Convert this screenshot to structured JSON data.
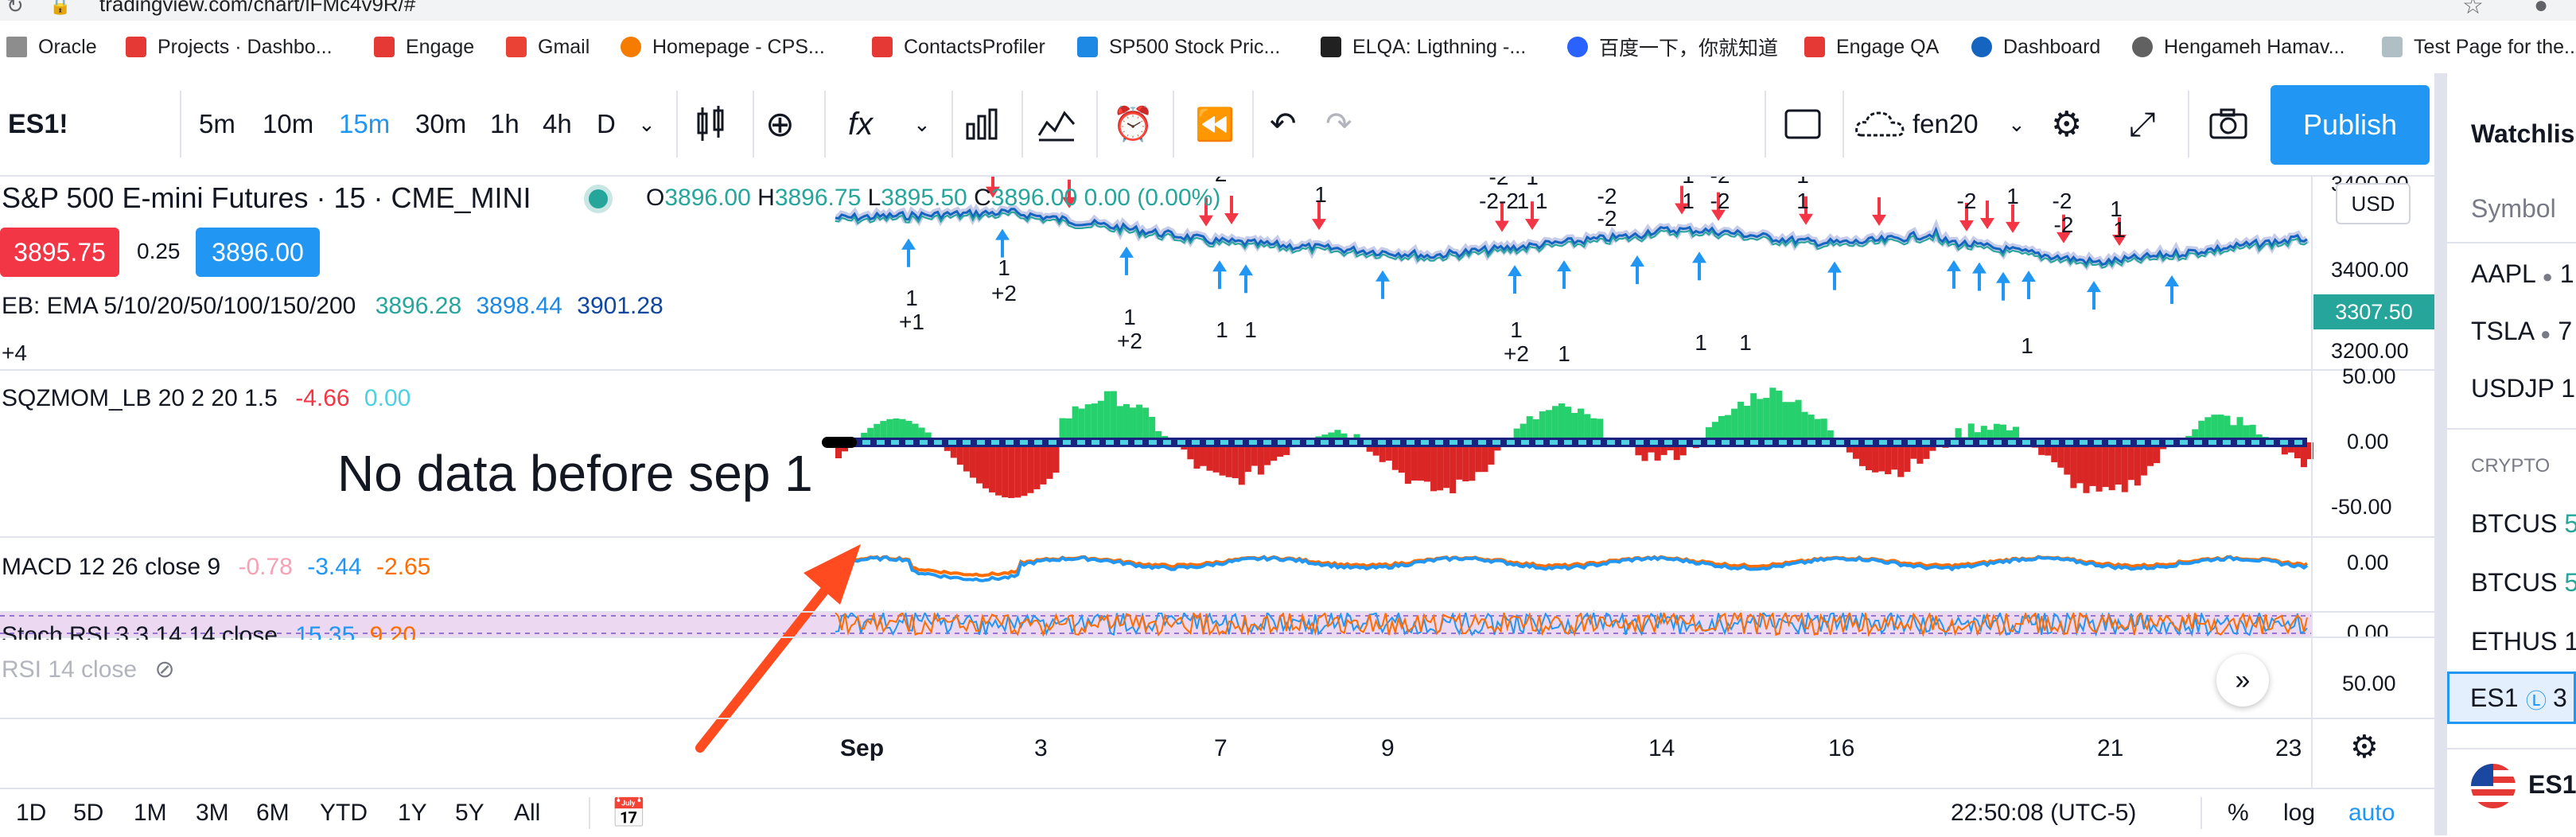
{
  "browser": {
    "url": "tradingview.com/chart/lFMc4v9R/#",
    "bookmarks": [
      "Oracle",
      "Projects · Dashbo...",
      "Engage",
      "Gmail",
      "Homepage - CPS...",
      "ContactsProfiler",
      "SP500 Stock Pric...",
      "ELQA: Ligthning -...",
      "百度一下，你就知道",
      "Engage QA",
      "Dashboard",
      "Hengameh Hamav...",
      "Test Page for the..."
    ]
  },
  "toolbar": {
    "symbol": "ES1!",
    "intervals": [
      "5m",
      "10m",
      "15m",
      "30m",
      "1h",
      "4h",
      "D"
    ],
    "active_interval": "15m",
    "layout_name": "fen20",
    "publish_label": "Publish",
    "accent": "#2196f3"
  },
  "legend": {
    "title": "S&P 500 E-mini Futures · 15 · CME_MINI",
    "ohlc": {
      "o_label": "O",
      "o": "3896.00",
      "h_label": "H",
      "h": "3896.75",
      "l_label": "L",
      "l": "3895.50",
      "c_label": "C",
      "c": "3896.00",
      "chg": "0.00 (0.00%)"
    },
    "bid": "3895.75",
    "spread": "0.25",
    "ask": "3896.00",
    "ema_label": "EB: EMA 5/10/20/50/100/150/200",
    "ema_values": [
      "3896.28",
      "3898.44",
      "3901.28"
    ],
    "more": "+4"
  },
  "indicators": {
    "sqz": {
      "label": "SQZMOM_LB 20 2 20 1.5",
      "v1": "-4.66",
      "v2": "0.00"
    },
    "macd": {
      "label": "MACD 12 26 close 9",
      "v1": "-0.78",
      "v2": "-3.44",
      "v3": "-2.65"
    },
    "stoch": {
      "label": "Stoch RSI 3 3 14 14 close",
      "v1": "15.35",
      "v2": "9.20"
    },
    "rsi": {
      "label": "RSI 14 close"
    }
  },
  "annotation": {
    "text": "No data before sep 1",
    "color": "#ff4b1f"
  },
  "price_axis": {
    "currency": "USD",
    "main": [
      "3400.00",
      "3200.00"
    ],
    "main_top": "3400.00",
    "last_price": "3307.50",
    "sqz": [
      "50.00",
      "0.00",
      "-50.00"
    ],
    "macd": "0.00",
    "stoch": "0.00",
    "rsi": "50.00"
  },
  "x_axis": [
    "Sep",
    "3",
    "7",
    "9",
    "14",
    "16",
    "21",
    "23"
  ],
  "signals": {
    "top_labels": [
      "-2",
      "1",
      "-2",
      "1",
      "-2",
      "1",
      "-2",
      "1",
      "-2",
      "1",
      "-2",
      "1",
      "-2-2",
      "1 1",
      "-2",
      "1",
      "-2",
      "1",
      "-2",
      "1"
    ],
    "bottom_labels": [
      "1",
      "+1",
      "1",
      "+2",
      "1",
      "+2",
      "1",
      "1",
      "1",
      "+2",
      "1",
      "1",
      "1",
      "1"
    ]
  },
  "bottom_bar": {
    "ranges": [
      "1D",
      "5D",
      "1M",
      "3M",
      "6M",
      "YTD",
      "1Y",
      "5Y",
      "All"
    ],
    "time": "22:50:08 (UTC-5)",
    "pct": "%",
    "log": "log",
    "auto": "auto"
  },
  "watchlist": {
    "title": "Watchlis",
    "header": "Symbol",
    "items": [
      "AAPL",
      "TSLA",
      "USDJP"
    ],
    "section": "CRYPTO",
    "crypto": [
      "BTCUS",
      "BTCUS",
      "ETHUS"
    ],
    "selected": "ES1",
    "footer": "ES1"
  },
  "colors": {
    "up": "#26a69a",
    "down": "#ef5350",
    "blue_arrow": "#2196f3",
    "red_arrow": "#f23645",
    "macd_line": "#2196f3",
    "signal_line": "#ff6d00",
    "sqz_green": "#00c853",
    "sqz_red": "#d50000",
    "stoch_bg": "#e1bee7"
  }
}
